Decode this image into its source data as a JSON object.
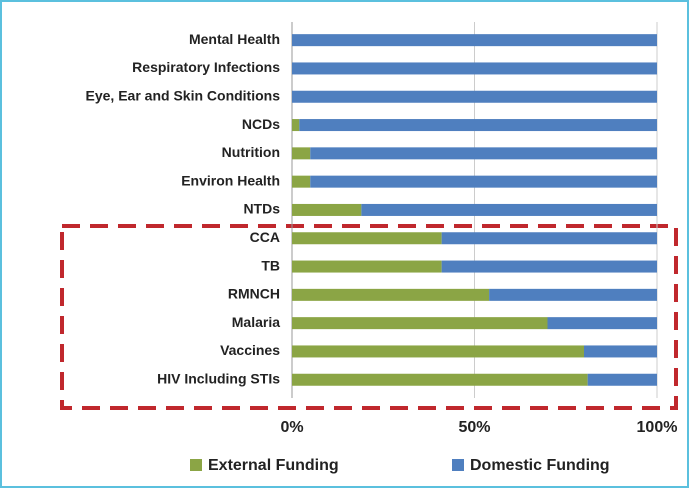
{
  "chart_data": {
    "type": "stacked_barh",
    "categories": [
      "Mental Health",
      "Respiratory Infections",
      "Eye, Ear and Skin Conditions",
      "NCDs",
      "Nutrition",
      "Environ Health",
      "NTDs",
      "CCA",
      "TB",
      "RMNCH",
      "Malaria",
      "Vaccines",
      "HIV Including STIs"
    ],
    "series": [
      {
        "name": "External Funding",
        "color": "#8ba545",
        "values": [
          0,
          0,
          0,
          2,
          5,
          5,
          19,
          41,
          41,
          54,
          70,
          80,
          81
        ]
      },
      {
        "name": "Domestic Funding",
        "color": "#4f7fbf",
        "values": [
          100,
          100,
          100,
          98,
          95,
          95,
          81,
          59,
          59,
          46,
          30,
          20,
          19
        ]
      }
    ],
    "xlim": [
      0,
      100
    ],
    "xticks": [
      {
        "value": 0,
        "label": "0%"
      },
      {
        "value": 50,
        "label": "50%"
      },
      {
        "value": 100,
        "label": "100%"
      }
    ],
    "grid": true,
    "legend": "bottom"
  }
}
